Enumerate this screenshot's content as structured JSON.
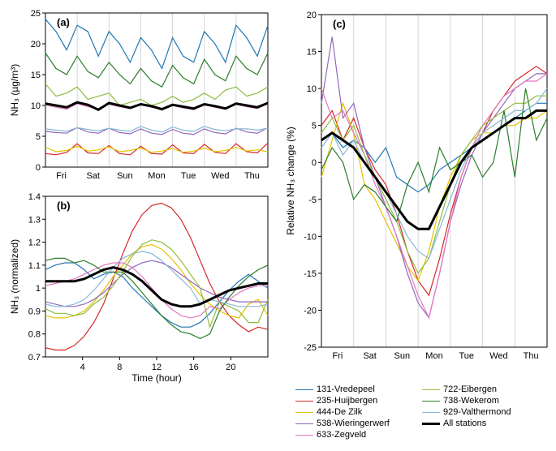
{
  "figure": {
    "background_color": "#ffffff",
    "axis_color": "#000000",
    "grid_color": "#cccccc",
    "series_colors": {
      "131-Vredepeel": "#1f77b4",
      "235-Huijbergen": "#d62728",
      "444-De Zilk": "#e6c200",
      "538-Wieringerwerf": "#9467bd",
      "633-Zegveld": "#e377c2",
      "722-Eibergen": "#8fbc3f",
      "738-Wekerom": "#2a7d2a",
      "929-Valthermond": "#87b8d6",
      "All stations": "#000000"
    },
    "all_stations_linewidth": 3,
    "series_linewidth": 1.2
  },
  "panel_a": {
    "label": "(a)",
    "xlabel": "",
    "ylabel": "NH₃ (µg/m³)",
    "xlim": [
      0,
      7
    ],
    "ylim": [
      0,
      25
    ],
    "ytick_step": 5,
    "xtick_labels": [
      "Fri",
      "Sat",
      "Sun",
      "Mon",
      "Tue",
      "Wed",
      "Thu"
    ],
    "series": {
      "131-Vredepeel": [
        24,
        22,
        19,
        23,
        22,
        18,
        22,
        20,
        17,
        21,
        19,
        16,
        21,
        18,
        17,
        22,
        20,
        17,
        23,
        21,
        18,
        23
      ],
      "235-Huijbergen": [
        2.2,
        2.0,
        2.4,
        3.8,
        2.3,
        2.2,
        3.5,
        2.2,
        2.0,
        3.4,
        2.2,
        2.1,
        3.6,
        2.3,
        2.2,
        3.7,
        2.4,
        2.2,
        3.8,
        2.5,
        2.3,
        3.9
      ],
      "444-De Zilk": [
        3.2,
        2.5,
        2.7,
        3.4,
        2.6,
        2.8,
        3.3,
        2.5,
        2.7,
        3.1,
        2.4,
        2.6,
        3.0,
        2.4,
        2.6,
        3.1,
        2.5,
        2.7,
        3.2,
        2.6,
        2.8,
        2.5
      ],
      "538-Wieringerwerf": [
        5.8,
        5.6,
        5.5,
        6.4,
        5.7,
        5.5,
        6.3,
        5.6,
        5.4,
        6.2,
        5.5,
        5.3,
        6.1,
        5.5,
        5.3,
        6.2,
        5.6,
        5.4,
        6.3,
        5.7,
        5.5,
        6.4
      ],
      "633-Zegveld": [
        10.1,
        9.7,
        9.4,
        10.3,
        9.8,
        9.5,
        10.2,
        9.8,
        9.5,
        10.1,
        9.7,
        9.4,
        10.0,
        9.6,
        9.3,
        10.1,
        9.7,
        9.4,
        10.2,
        9.8,
        9.5,
        10.3
      ],
      "722-Eibergen": [
        13.5,
        11.5,
        12,
        13,
        11,
        11.5,
        12,
        10,
        10.5,
        11,
        10,
        10.5,
        11.5,
        10.5,
        11,
        12,
        11,
        12.5,
        13,
        11.5,
        12,
        13
      ],
      "738-Wekerom": [
        18.5,
        16,
        15,
        18,
        15.5,
        14.5,
        17,
        15,
        13.5,
        16,
        14,
        13,
        16.5,
        14.5,
        13.5,
        17.5,
        15,
        14,
        18,
        16,
        15,
        18.5
      ],
      "929-Valthermond": [
        6.2,
        6.0,
        5.8,
        6.4,
        6.1,
        5.9,
        6.3,
        6.0,
        5.8,
        6.6,
        6.0,
        5.7,
        6.5,
        6.0,
        5.8,
        6.6,
        6.1,
        5.9,
        6.2,
        6.2,
        6.0,
        6.3
      ],
      "All stations": [
        10.3,
        10.0,
        9.7,
        10.5,
        10.1,
        9.3,
        10.4,
        10.0,
        9.6,
        10.2,
        9.9,
        9.4,
        10.1,
        9.8,
        9.5,
        10.2,
        9.9,
        9.5,
        10.3,
        10.0,
        9.7,
        10.4
      ]
    }
  },
  "panel_b": {
    "label": "(b)",
    "xlabel": "Time (hour)",
    "ylabel": "NH₃ (normalized)",
    "xlim": [
      0,
      24
    ],
    "ylim": [
      0.7,
      1.4
    ],
    "xticks": [
      4,
      8,
      12,
      16,
      20
    ],
    "yticks": [
      0.7,
      0.8,
      0.9,
      1.0,
      1.1,
      1.2,
      1.3,
      1.4
    ],
    "series": {
      "131-Vredepeel": [
        1.08,
        1.1,
        1.11,
        1.11,
        1.08,
        1.04,
        1.06,
        1.07,
        1.05,
        1.0,
        0.96,
        0.92,
        0.88,
        0.85,
        0.83,
        0.83,
        0.85,
        0.89,
        0.94,
        0.99,
        1.03,
        1.06,
        1.03,
        1.0
      ],
      "235-Huijbergen": [
        0.74,
        0.73,
        0.73,
        0.75,
        0.79,
        0.85,
        0.93,
        1.04,
        1.15,
        1.25,
        1.32,
        1.36,
        1.37,
        1.35,
        1.3,
        1.22,
        1.12,
        1.02,
        0.94,
        0.88,
        0.84,
        0.81,
        0.83,
        0.82
      ],
      "444-De Zilk": [
        0.88,
        0.87,
        0.87,
        0.88,
        0.9,
        0.94,
        0.99,
        1.05,
        1.1,
        1.15,
        1.18,
        1.19,
        1.17,
        1.13,
        1.08,
        1.02,
        0.97,
        0.93,
        0.9,
        0.88,
        0.87,
        0.93,
        0.95,
        0.88
      ],
      "538-Wieringerwerf": [
        0.94,
        0.93,
        0.92,
        0.92,
        0.93,
        0.95,
        0.98,
        1.02,
        1.06,
        1.09,
        1.11,
        1.12,
        1.11,
        1.09,
        1.06,
        1.03,
        1.0,
        0.98,
        0.96,
        0.95,
        0.94,
        0.94,
        0.94,
        0.94
      ],
      "633-Zegveld": [
        1.01,
        1.02,
        1.03,
        1.04,
        1.06,
        1.08,
        1.1,
        1.11,
        1.11,
        1.09,
        1.05,
        1.0,
        0.95,
        0.91,
        0.88,
        0.87,
        0.88,
        0.92,
        0.91,
        0.95,
        0.98,
        1.0,
        1.01,
        1.01
      ],
      "722-Eibergen": [
        0.91,
        0.89,
        0.89,
        0.88,
        0.89,
        0.93,
        0.96,
        1.01,
        1.07,
        1.14,
        1.19,
        1.21,
        1.2,
        1.17,
        1.12,
        1.06,
        1.0,
        0.83,
        0.94,
        0.92,
        0.9,
        0.85,
        0.85,
        0.95
      ],
      "738-Wekerom": [
        1.12,
        1.13,
        1.13,
        1.11,
        1.12,
        1.1,
        1.07,
        1.07,
        1.07,
        1.03,
        0.98,
        0.93,
        0.88,
        0.84,
        0.81,
        0.8,
        0.78,
        0.8,
        0.9,
        0.96,
        1.01,
        1.05,
        1.08,
        1.1
      ],
      "929-Valthermond": [
        0.93,
        0.92,
        0.92,
        0.93,
        0.95,
        0.99,
        1.04,
        1.09,
        1.13,
        1.15,
        1.16,
        1.15,
        1.12,
        1.08,
        1.04,
        1.0,
        0.93,
        0.95,
        0.94,
        0.93,
        0.92,
        0.92,
        0.92,
        0.93
      ],
      "All stations": [
        1.03,
        1.03,
        1.03,
        1.03,
        1.04,
        1.06,
        1.08,
        1.09,
        1.08,
        1.06,
        1.03,
        0.99,
        0.95,
        0.93,
        0.92,
        0.92,
        0.93,
        0.95,
        0.97,
        0.99,
        1.0,
        1.01,
        1.02,
        1.02
      ]
    }
  },
  "panel_c": {
    "label": "(c)",
    "xlabel": "",
    "ylabel": "Relative NH₃ change (%)",
    "xlim": [
      0,
      7
    ],
    "ylim": [
      -25,
      20
    ],
    "ytick_step": 5,
    "xtick_labels": [
      "Fri",
      "Sat",
      "Sun",
      "Mon",
      "Tue",
      "Wed",
      "Thu"
    ],
    "series": {
      "131-Vredepeel": [
        3,
        4,
        2,
        3,
        2,
        0,
        2,
        -2,
        -3,
        -4,
        -3,
        -1,
        0,
        1,
        2,
        3,
        4,
        5,
        6,
        7,
        8,
        8
      ],
      "235-Huijbergen": [
        5,
        7,
        3,
        6,
        2,
        -1,
        -3,
        -7,
        -12,
        -16,
        -18,
        -13,
        -7,
        -2,
        2,
        4,
        7,
        9,
        11,
        12,
        13,
        12
      ],
      "444-De Zilk": [
        -2,
        3,
        8,
        4,
        -3,
        -5,
        -8,
        -11,
        -14,
        -16,
        -12,
        -6,
        -2,
        1,
        3,
        4,
        4,
        5,
        5,
        6,
        6,
        7
      ],
      "538-Wieringerwerf": [
        8,
        17,
        6,
        8,
        2,
        -2,
        -6,
        -10,
        -15,
        -19,
        -21,
        -15,
        -8,
        -3,
        1,
        4,
        6,
        8,
        10,
        11,
        12,
        12
      ],
      "633-Zegveld": [
        10,
        6,
        7,
        4,
        1,
        -3,
        -6,
        -10,
        -14,
        -18,
        -21,
        -15,
        -8,
        -2,
        2,
        5,
        7,
        9,
        10,
        11,
        11,
        12
      ],
      "722-Eibergen": [
        4,
        6,
        3,
        5,
        1,
        -2,
        -5,
        -8,
        -12,
        -15,
        -13,
        -8,
        -3,
        1,
        3,
        5,
        6,
        7,
        8,
        8,
        9,
        9
      ],
      "738-Wekerom": [
        -1,
        2,
        0,
        -5,
        -3,
        -4,
        -6,
        -8,
        -3,
        0,
        -4,
        2,
        -1,
        0,
        1,
        -2,
        0,
        7,
        -2,
        10,
        3,
        6
      ],
      "929-Valthermond": [
        2,
        4,
        1,
        3,
        0,
        -2,
        -4,
        -7,
        -10,
        -12,
        -13,
        -9,
        -5,
        -1,
        2,
        4,
        5,
        6,
        7,
        7,
        8,
        10
      ],
      "All stations": [
        3,
        4,
        3,
        2,
        0,
        -2,
        -4,
        -6,
        -8,
        -9,
        -9,
        -6,
        -3,
        0,
        2,
        3,
        4,
        5,
        6,
        6,
        7,
        7
      ]
    }
  },
  "legend_items": [
    {
      "label": "131-Vredepeel",
      "thick": false
    },
    {
      "label": "722-Eibergen",
      "thick": false
    },
    {
      "label": "235-Huijbergen",
      "thick": false
    },
    {
      "label": "738-Wekerom",
      "thick": false
    },
    {
      "label": "444-De Zilk",
      "thick": false
    },
    {
      "label": "929-Valthermond",
      "thick": false
    },
    {
      "label": "538-Wieringerwerf",
      "thick": false
    },
    {
      "label": "All stations",
      "thick": true
    },
    {
      "label": "633-Zegveld",
      "thick": false
    }
  ]
}
